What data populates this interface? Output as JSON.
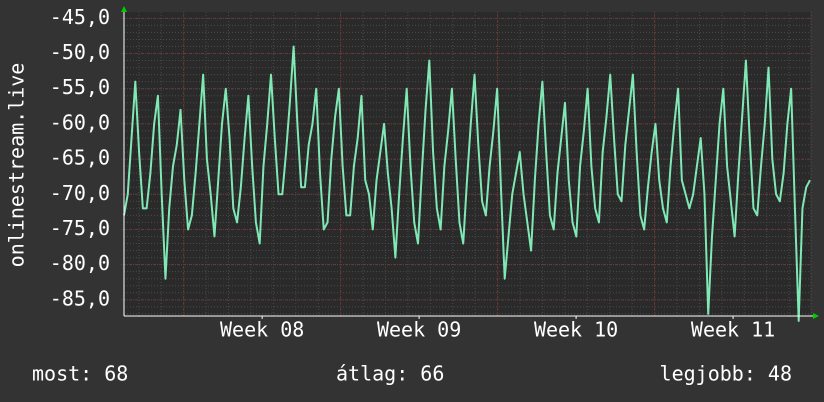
{
  "chart_data": {
    "type": "line",
    "ylabel": "onlinestream.live",
    "color": "#7fe8b5",
    "xlim": [
      7.12,
      11.49
    ],
    "xticks": [
      {
        "value": 8,
        "label": "Week 08"
      },
      {
        "value": 9,
        "label": "Week 09"
      },
      {
        "value": 10,
        "label": "Week 10"
      },
      {
        "value": 11,
        "label": "Week 11"
      }
    ],
    "ylim": [
      -87.3,
      -44.1
    ],
    "yticks": [
      {
        "value": -45,
        "label": "-45,0"
      },
      {
        "value": -50,
        "label": "-50,0"
      },
      {
        "value": -55,
        "label": "-55,0"
      },
      {
        "value": -60,
        "label": "-60,0"
      },
      {
        "value": -65,
        "label": "-65,0"
      },
      {
        "value": -70,
        "label": "-70,0"
      },
      {
        "value": -75,
        "label": "-75,0"
      },
      {
        "value": -80,
        "label": "-80,0"
      },
      {
        "value": -85,
        "label": "-85,0"
      }
    ],
    "grid": true,
    "values": [
      -73,
      -70,
      -62,
      -54,
      -64,
      -72,
      -72,
      -67,
      -60,
      -56,
      -70,
      -82,
      -72,
      -66,
      -63,
      -58,
      -68,
      -75,
      -73,
      -67,
      -60,
      -53,
      -65,
      -70,
      -76,
      -68,
      -60,
      -55,
      -62,
      -72,
      -74,
      -69,
      -62,
      -56,
      -66,
      -74,
      -77,
      -66,
      -60,
      -53,
      -62,
      -70,
      -70,
      -64,
      -57,
      -49,
      -60,
      -69,
      -69,
      -63,
      -60,
      -55,
      -67,
      -75,
      -74,
      -65,
      -59,
      -55,
      -66,
      -73,
      -73,
      -66,
      -62,
      -56,
      -68,
      -70,
      -75,
      -68,
      -64,
      -60,
      -67,
      -72,
      -79,
      -70,
      -62,
      -55,
      -66,
      -74,
      -77,
      -67,
      -58,
      -51,
      -64,
      -72,
      -75,
      -66,
      -61,
      -55,
      -65,
      -74,
      -77,
      -68,
      -60,
      -53,
      -63,
      -71,
      -73,
      -66,
      -61,
      -55,
      -69,
      -82,
      -76,
      -70,
      -67,
      -64,
      -70,
      -74,
      -78,
      -68,
      -60,
      -54,
      -64,
      -73,
      -75,
      -67,
      -62,
      -57,
      -68,
      -74,
      -76,
      -66,
      -61,
      -55,
      -66,
      -72,
      -74,
      -64,
      -59,
      -53,
      -62,
      -70,
      -71,
      -63,
      -58,
      -53,
      -64,
      -73,
      -75,
      -69,
      -64,
      -60,
      -68,
      -72,
      -74,
      -66,
      -60,
      -55,
      -68,
      -70,
      -72,
      -70,
      -66,
      -62,
      -70,
      -87,
      -76,
      -68,
      -60,
      -55,
      -66,
      -71,
      -76,
      -67,
      -59,
      -51,
      -62,
      -72,
      -73,
      -66,
      -60,
      -52,
      -65,
      -70,
      -71,
      -67,
      -60,
      -55,
      -72,
      -88,
      -72,
      -69,
      -68
    ],
    "footer": [
      "most: 68",
      "átlag: 66",
      "legjobb: 48"
    ]
  }
}
